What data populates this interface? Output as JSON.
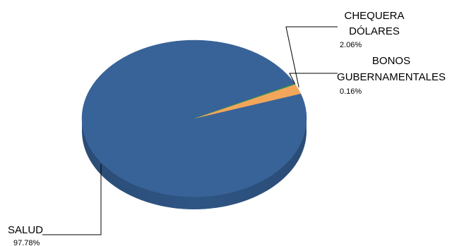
{
  "chart_data": {
    "type": "pie",
    "style": "3d",
    "title": "",
    "slices": [
      {
        "name": "SALUD",
        "value": 97.78,
        "value_label": "97.78%",
        "color": "#386398"
      },
      {
        "name": "CHEQUERA DÓLARES",
        "name_lines": [
          "CHEQUERA",
          "DÓLARES"
        ],
        "value": 2.06,
        "value_label": "2.06%",
        "color": "#F2A65A"
      },
      {
        "name": "BONOS GUBERNAMENTALES",
        "name_lines": [
          "BONOS",
          "GUBERNAMENTALES"
        ],
        "value": 0.16,
        "value_label": "0.16%",
        "color": "#2E8B57"
      }
    ],
    "legend": "none",
    "data_labels": "outside-with-leader-lines"
  }
}
